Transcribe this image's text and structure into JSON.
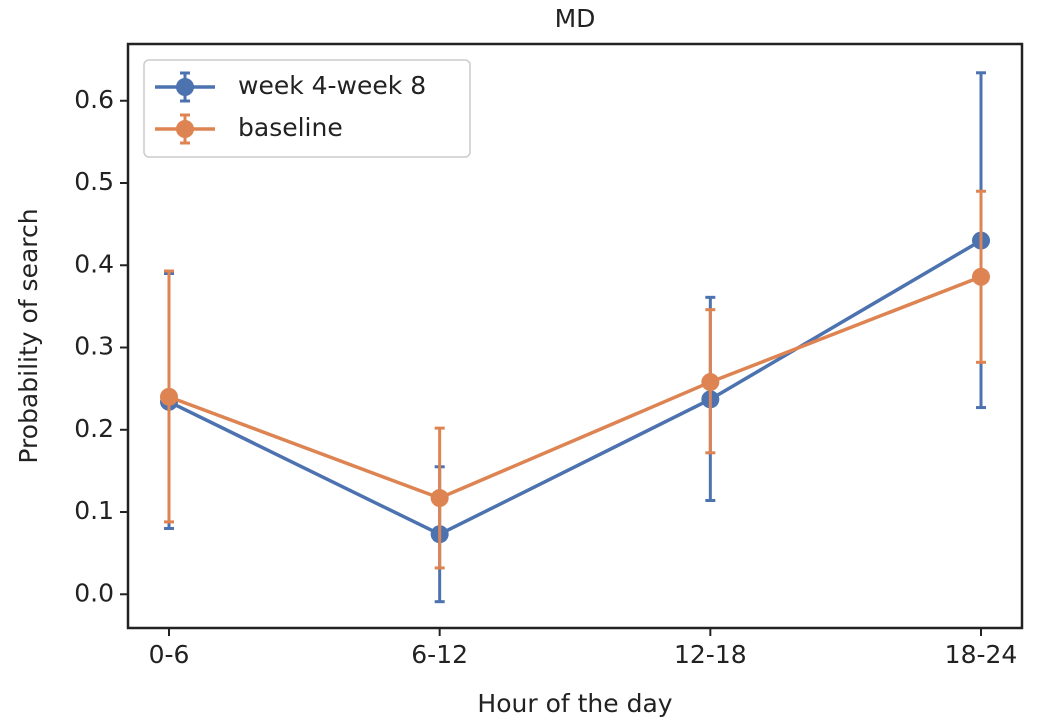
{
  "chart_data": {
    "type": "line",
    "title": "MD",
    "xlabel": "Hour of the day",
    "ylabel": "Probability of search",
    "categories": [
      "0-6",
      "6-12",
      "12-18",
      "18-24"
    ],
    "series": [
      {
        "name": "week 4-week 8",
        "color": "#4c72b0",
        "values": [
          0.234,
          0.073,
          0.237,
          0.43
        ],
        "lower": [
          0.08,
          -0.009,
          0.114,
          0.227
        ],
        "upper": [
          0.39,
          0.155,
          0.361,
          0.634
        ]
      },
      {
        "name": "baseline",
        "color": "#dd8452",
        "values": [
          0.24,
          0.117,
          0.258,
          0.386
        ],
        "lower": [
          0.088,
          0.032,
          0.172,
          0.282
        ],
        "upper": [
          0.393,
          0.202,
          0.346,
          0.49
        ]
      }
    ],
    "ylim": [
      -0.041,
      0.669
    ],
    "yticks": [
      {
        "value": 0,
        "label": "0.0"
      },
      0.1,
      0.2,
      0.3,
      0.4,
      0.5,
      0.6
    ],
    "legend": "upper left"
  }
}
